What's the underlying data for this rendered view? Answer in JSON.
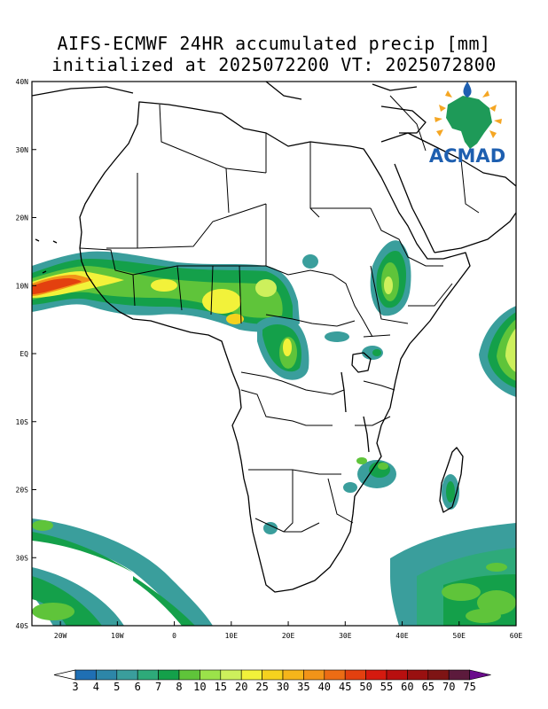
{
  "title": {
    "line1": "AIFS-ECMWF 24HR accumulated precip [mm]",
    "line2": "initialized at 2025072200 VT: 2025072800"
  },
  "map": {
    "lon_range": [
      -25,
      60
    ],
    "lat_range": [
      -40,
      40
    ],
    "x_ticks": [
      "20W",
      "10W",
      "0",
      "10E",
      "20E",
      "30E",
      "40E",
      "50E",
      "60E"
    ],
    "y_ticks": [
      "40N",
      "30N",
      "20N",
      "10N",
      "EQ",
      "10S",
      "20S",
      "30S",
      "40S"
    ]
  },
  "logo": {
    "text": "ACMAD"
  },
  "colorbar": {
    "labels": [
      "3",
      "4",
      "5",
      "6",
      "7",
      "8",
      "10",
      "15",
      "20",
      "25",
      "30",
      "35",
      "40",
      "45",
      "50",
      "55",
      "60",
      "65",
      "70",
      "75"
    ],
    "colors": [
      "#1f6fb4",
      "#2d86a8",
      "#3a9e9c",
      "#2eaa7a",
      "#14a04a",
      "#5fc43a",
      "#9be24a",
      "#cdf05c",
      "#f2f23a",
      "#f5d21e",
      "#f5b51a",
      "#f29418",
      "#ec6c14",
      "#e3400f",
      "#d51a0f",
      "#b80f0f",
      "#991010",
      "#7e1414",
      "#5c1a3c",
      "#6a0c8c"
    ]
  }
}
